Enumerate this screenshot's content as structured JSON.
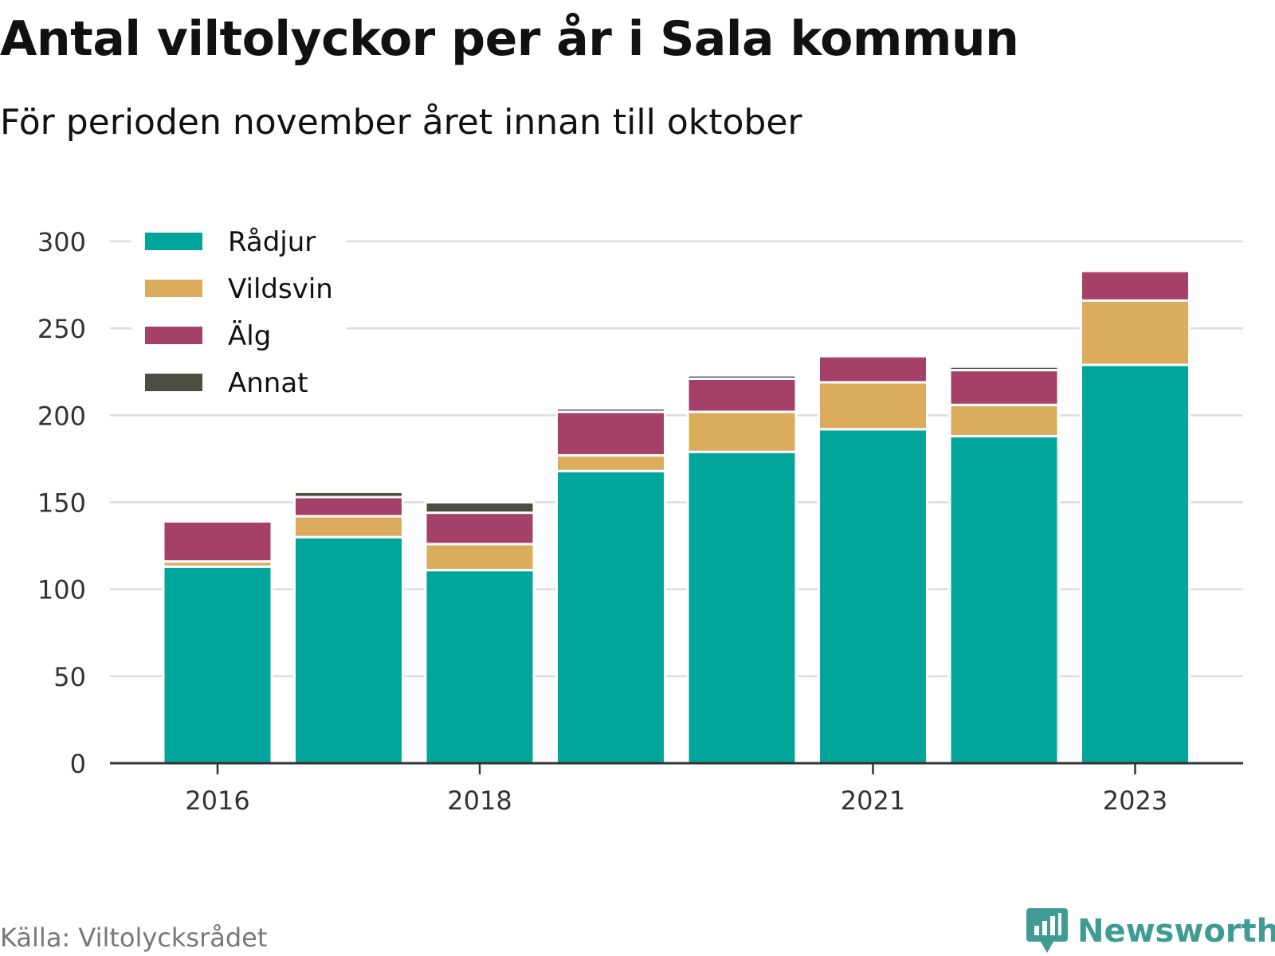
{
  "title": "Antal viltolyckor per år i Sala kommun",
  "subtitle": "För perioden november året innan till oktober",
  "source": "Källa: Viltolycksrådet",
  "brand": {
    "name": "Newsworthy",
    "icon": "newsworthy-logo-icon",
    "color": "#3f9b93"
  },
  "chart_data": {
    "type": "bar",
    "stacked": true,
    "categories": [
      "2016",
      "2017",
      "2018",
      "2019",
      "2020",
      "2021",
      "2022",
      "2023"
    ],
    "x_tick_labels": [
      "2016",
      "",
      "2018",
      "",
      "",
      "2021",
      "",
      "2023"
    ],
    "series": [
      {
        "name": "Rådjur",
        "color": "#00a59b",
        "values": [
          113,
          130,
          111,
          168,
          179,
          192,
          188,
          229
        ]
      },
      {
        "name": "Vildsvin",
        "color": "#dbac5b",
        "values": [
          3,
          12,
          15,
          9,
          23,
          27,
          18,
          37
        ]
      },
      {
        "name": "Älg",
        "color": "#a54068",
        "values": [
          23,
          11,
          18,
          25,
          19,
          15,
          20,
          17
        ]
      },
      {
        "name": "Annat",
        "color": "#4b4e41",
        "values": [
          0,
          3,
          6,
          2,
          2,
          0,
          2,
          0
        ]
      }
    ],
    "ylim": [
      0,
      300
    ],
    "yticks": [
      0,
      50,
      100,
      150,
      200,
      250,
      300
    ],
    "xlabel": "",
    "ylabel": "",
    "grid": true,
    "legend_position": "top-left"
  }
}
